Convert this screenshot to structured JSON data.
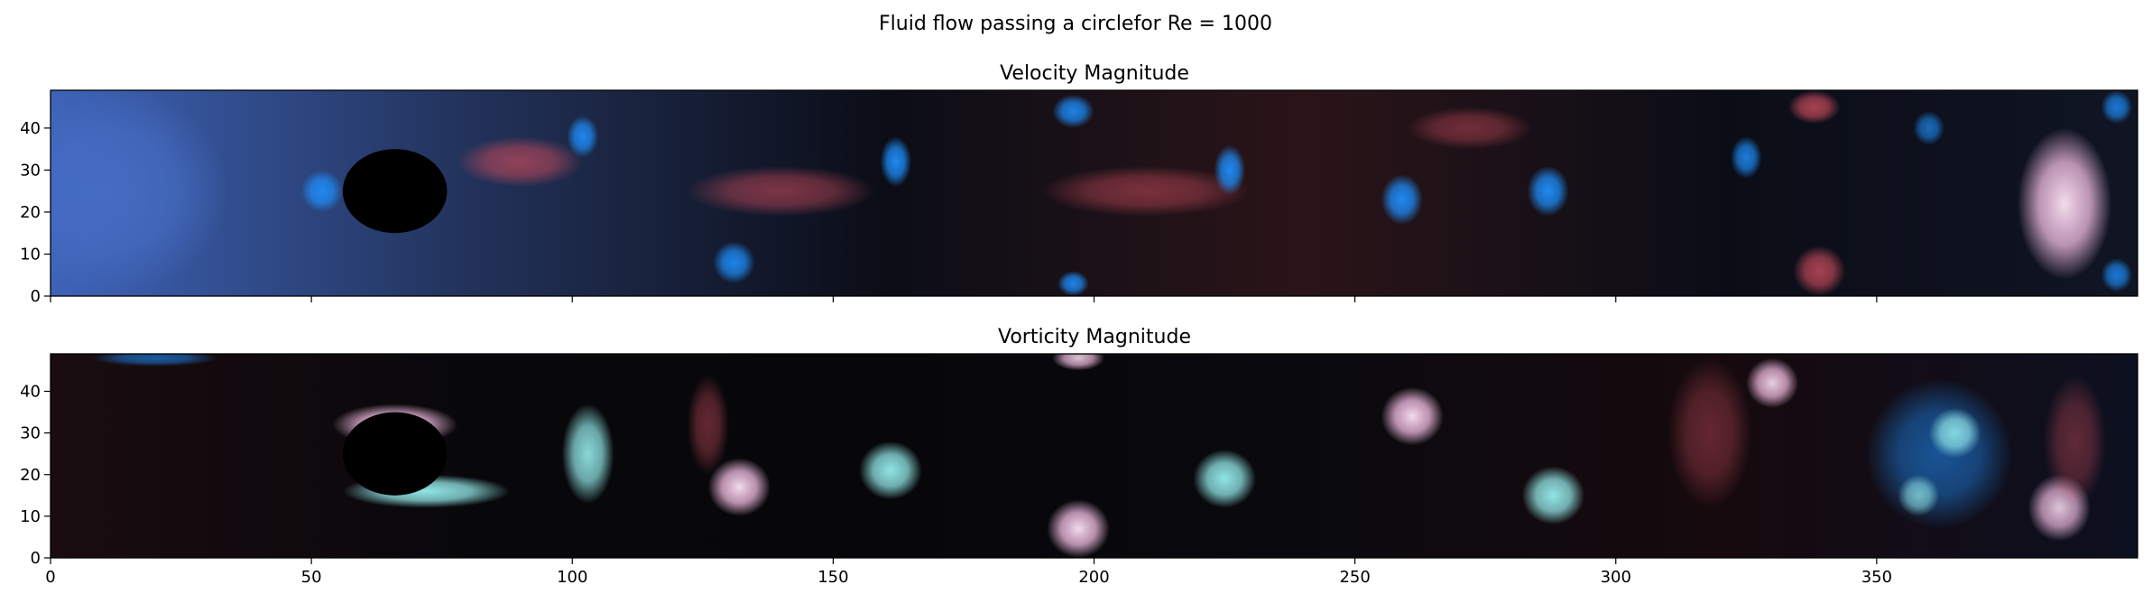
{
  "figure": {
    "suptitle": "Fluid flow passing a circlefor Re = 1000"
  },
  "chart_data": [
    {
      "type": "heatmap",
      "title": "Velocity Magnitude",
      "xlim": [
        0,
        400
      ],
      "ylim": [
        0,
        49
      ],
      "xticks": [
        0,
        50,
        100,
        150,
        200,
        250,
        300,
        350
      ],
      "xtick_labels_visible": false,
      "yticks": [
        0,
        10,
        20,
        30,
        40
      ],
      "ytick_labels": [
        "0",
        "10",
        "20",
        "30",
        "40"
      ],
      "obstacle": {
        "shape": "circle",
        "cx": 66,
        "cy": 25,
        "r": 10
      },
      "colormap": "diverging blue-black-red",
      "colors": {
        "blue": "#1e90ff",
        "dark": "#050508",
        "red": "#c44a5a",
        "light_pink": "#ffe0f0"
      },
      "blobs": [
        {
          "kind": "blue-light",
          "x": 12,
          "y": 25,
          "rx": 22,
          "ry": 25,
          "a": 0.7
        },
        {
          "kind": "blue",
          "x": 52,
          "y": 25,
          "rx": 4,
          "ry": 5,
          "a": 0.9
        },
        {
          "kind": "blue",
          "x": 102,
          "y": 38,
          "rx": 3,
          "ry": 5,
          "a": 0.9
        },
        {
          "kind": "red",
          "x": 90,
          "y": 32,
          "rx": 12,
          "ry": 6,
          "a": 0.7
        },
        {
          "kind": "blue",
          "x": 131,
          "y": 8,
          "rx": 4,
          "ry": 5,
          "a": 0.9
        },
        {
          "kind": "red",
          "x": 140,
          "y": 25,
          "rx": 18,
          "ry": 6,
          "a": 0.6
        },
        {
          "kind": "blue",
          "x": 162,
          "y": 32,
          "rx": 3,
          "ry": 6,
          "a": 0.95
        },
        {
          "kind": "blue",
          "x": 196,
          "y": 44,
          "rx": 4,
          "ry": 4,
          "a": 0.9
        },
        {
          "kind": "red",
          "x": 210,
          "y": 25,
          "rx": 20,
          "ry": 6,
          "a": 0.55
        },
        {
          "kind": "blue",
          "x": 226,
          "y": 30,
          "rx": 3,
          "ry": 6,
          "a": 0.95
        },
        {
          "kind": "blue",
          "x": 196,
          "y": 3,
          "rx": 3,
          "ry": 3,
          "a": 0.9
        },
        {
          "kind": "blue",
          "x": 259,
          "y": 23,
          "rx": 4,
          "ry": 6,
          "a": 0.95
        },
        {
          "kind": "red",
          "x": 272,
          "y": 40,
          "rx": 12,
          "ry": 5,
          "a": 0.5
        },
        {
          "kind": "blue",
          "x": 287,
          "y": 25,
          "rx": 4,
          "ry": 6,
          "a": 0.95
        },
        {
          "kind": "blue",
          "x": 325,
          "y": 33,
          "rx": 3,
          "ry": 5,
          "a": 0.85
        },
        {
          "kind": "red",
          "x": 338,
          "y": 45,
          "rx": 5,
          "ry": 4,
          "a": 0.85
        },
        {
          "kind": "red",
          "x": 339,
          "y": 6,
          "rx": 5,
          "ry": 6,
          "a": 0.85
        },
        {
          "kind": "blue",
          "x": 360,
          "y": 40,
          "rx": 3,
          "ry": 4,
          "a": 0.7
        },
        {
          "kind": "pink",
          "x": 386,
          "y": 22,
          "rx": 9,
          "ry": 18,
          "a": 0.95
        },
        {
          "kind": "blue",
          "x": 396,
          "y": 45,
          "rx": 3,
          "ry": 4,
          "a": 0.8
        },
        {
          "kind": "blue",
          "x": 396,
          "y": 5,
          "rx": 3,
          "ry": 4,
          "a": 0.8
        }
      ]
    },
    {
      "type": "heatmap",
      "title": "Vorticity Magnitude",
      "xlim": [
        0,
        400
      ],
      "ylim": [
        0,
        49
      ],
      "xticks": [
        0,
        50,
        100,
        150,
        200,
        250,
        300,
        350
      ],
      "xtick_labels": [
        "0",
        "50",
        "100",
        "150",
        "200",
        "250",
        "300",
        "350"
      ],
      "yticks": [
        0,
        10,
        20,
        30,
        40
      ],
      "ytick_labels": [
        "0",
        "10",
        "20",
        "30",
        "40"
      ],
      "obstacle": {
        "shape": "circle",
        "cx": 66,
        "cy": 25,
        "r": 10
      },
      "colormap": "diverging cyan-black-pink",
      "colors": {
        "cyan": "#98f0f0",
        "dark": "#050508",
        "pink": "#ffc0ec",
        "red": "#b0404c",
        "blue": "#3c6cd8"
      },
      "blobs": [
        {
          "kind": "pink",
          "x": 66,
          "y": 32,
          "rx": 12,
          "ry": 5,
          "a": 0.95
        },
        {
          "kind": "cyan",
          "x": 72,
          "y": 16,
          "rx": 16,
          "ry": 4,
          "a": 0.95
        },
        {
          "kind": "cyan",
          "x": 103,
          "y": 25,
          "rx": 5,
          "ry": 12,
          "a": 0.9
        },
        {
          "kind": "pink",
          "x": 132,
          "y": 17,
          "rx": 6,
          "ry": 7,
          "a": 0.95
        },
        {
          "kind": "red",
          "x": 126,
          "y": 32,
          "rx": 4,
          "ry": 12,
          "a": 0.5
        },
        {
          "kind": "cyan",
          "x": 161,
          "y": 21,
          "rx": 6,
          "ry": 7,
          "a": 0.95
        },
        {
          "kind": "pink",
          "x": 197,
          "y": 7,
          "rx": 6,
          "ry": 7,
          "a": 0.95
        },
        {
          "kind": "pink",
          "x": 197,
          "y": 48,
          "rx": 5,
          "ry": 3,
          "a": 0.85
        },
        {
          "kind": "cyan",
          "x": 225,
          "y": 19,
          "rx": 6,
          "ry": 7,
          "a": 0.95
        },
        {
          "kind": "pink",
          "x": 261,
          "y": 34,
          "rx": 6,
          "ry": 7,
          "a": 0.95
        },
        {
          "kind": "cyan",
          "x": 288,
          "y": 15,
          "rx": 6,
          "ry": 7,
          "a": 0.95
        },
        {
          "kind": "red",
          "x": 318,
          "y": 30,
          "rx": 8,
          "ry": 18,
          "a": 0.45
        },
        {
          "kind": "pink",
          "x": 330,
          "y": 42,
          "rx": 5,
          "ry": 6,
          "a": 0.9
        },
        {
          "kind": "blue",
          "x": 362,
          "y": 25,
          "rx": 14,
          "ry": 18,
          "a": 0.55
        },
        {
          "kind": "cyan",
          "x": 365,
          "y": 30,
          "rx": 5,
          "ry": 6,
          "a": 0.85
        },
        {
          "kind": "cyan",
          "x": 358,
          "y": 15,
          "rx": 4,
          "ry": 5,
          "a": 0.7
        },
        {
          "kind": "pink",
          "x": 385,
          "y": 12,
          "rx": 6,
          "ry": 8,
          "a": 0.85
        },
        {
          "kind": "red",
          "x": 388,
          "y": 28,
          "rx": 6,
          "ry": 16,
          "a": 0.45
        },
        {
          "kind": "blue",
          "x": 20,
          "y": 48,
          "rx": 12,
          "ry": 2,
          "a": 0.6
        }
      ]
    }
  ]
}
